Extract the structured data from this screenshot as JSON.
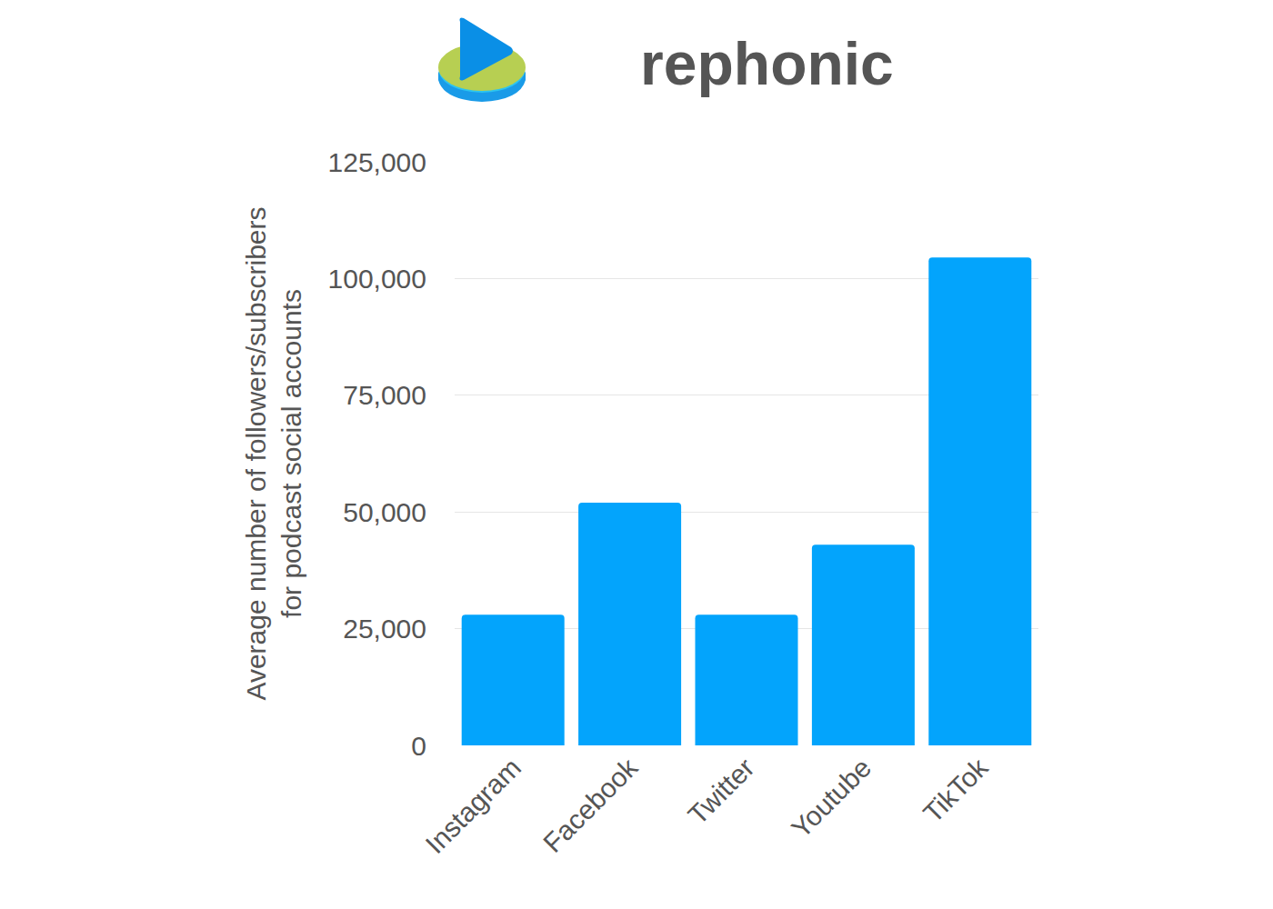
{
  "chart_data": {
    "type": "bar",
    "title": "rephonic",
    "y_label": [
      "Average number of followers/subscribers",
      "for podcast social accounts"
    ],
    "categories": [
      "Instagram",
      "Facebook",
      "Twitter",
      "Youtube",
      "TikTok"
    ],
    "values": [
      28000,
      52000,
      28000,
      43000,
      104500
    ],
    "color": "#03a4fc",
    "ylim": [
      0,
      125000
    ],
    "yticks": [
      0,
      {
        "value": 25000,
        "label": "25,000"
      },
      {
        "value": 50000,
        "label": "50,000"
      },
      {
        "value": 75000,
        "label": "75,000"
      },
      {
        "value": 100000,
        "label": "100,000"
      },
      {
        "value": 125000,
        "label": "125,000"
      }
    ],
    "grid": true
  }
}
